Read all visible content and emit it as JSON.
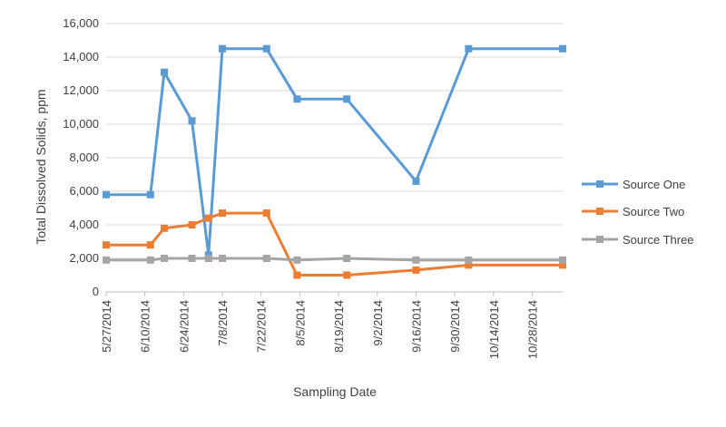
{
  "chart_data": {
    "type": "line",
    "title": "",
    "xlabel": "Sampling Date",
    "ylabel": "Total Dissolved Solids, ppm",
    "ylim": [
      0,
      16000
    ],
    "y_ticks": [
      0,
      2000,
      4000,
      6000,
      8000,
      10000,
      12000,
      14000,
      16000
    ],
    "y_tick_labels": [
      "0",
      "2,000",
      "4,000",
      "6,000",
      "8,000",
      "10,000",
      "12,000",
      "14,000",
      "16,000"
    ],
    "xlim": [
      "2014-05-27",
      "2014-11-08"
    ],
    "x_ticks": [
      "2014-05-27",
      "2014-06-10",
      "2014-06-24",
      "2014-07-08",
      "2014-07-22",
      "2014-08-05",
      "2014-08-19",
      "2014-09-02",
      "2014-09-16",
      "2014-09-30",
      "2014-10-14",
      "2014-10-28"
    ],
    "x_tick_labels": [
      "5/27/2014",
      "6/10/2014",
      "6/24/2014",
      "7/8/2014",
      "7/22/2014",
      "8/5/2014",
      "8/19/2014",
      "9/2/2014",
      "9/16/2014",
      "9/30/2014",
      "10/14/2014",
      "10/28/2014"
    ],
    "grid": "horizontal",
    "legend_position": "right",
    "series": [
      {
        "name": "Source One",
        "color": "#5B9BD5",
        "x": [
          "2014-05-27",
          "2014-06-12",
          "2014-06-17",
          "2014-06-27",
          "2014-07-03",
          "2014-07-08",
          "2014-07-24",
          "2014-08-04",
          "2014-08-22",
          "2014-09-16",
          "2014-10-05",
          "2014-11-08"
        ],
        "y": [
          5800,
          5800,
          13100,
          10200,
          2200,
          14500,
          14500,
          11500,
          11500,
          6600,
          14500,
          14500
        ]
      },
      {
        "name": "Source Two",
        "color": "#ED7D31",
        "x": [
          "2014-05-27",
          "2014-06-12",
          "2014-06-17",
          "2014-06-27",
          "2014-07-03",
          "2014-07-08",
          "2014-07-24",
          "2014-08-04",
          "2014-08-22",
          "2014-09-16",
          "2014-10-05",
          "2014-11-08"
        ],
        "y": [
          2800,
          2800,
          3800,
          4000,
          4400,
          4700,
          4700,
          1000,
          1000,
          1300,
          1600,
          1600
        ]
      },
      {
        "name": "Source Three",
        "color": "#A5A5A5",
        "x": [
          "2014-05-27",
          "2014-06-12",
          "2014-06-17",
          "2014-06-27",
          "2014-07-03",
          "2014-07-08",
          "2014-07-24",
          "2014-08-04",
          "2014-08-22",
          "2014-09-16",
          "2014-10-05",
          "2014-11-08"
        ],
        "y": [
          1900,
          1900,
          2000,
          2000,
          2000,
          2000,
          2000,
          1900,
          2000,
          1900,
          1900,
          1900
        ]
      }
    ]
  }
}
